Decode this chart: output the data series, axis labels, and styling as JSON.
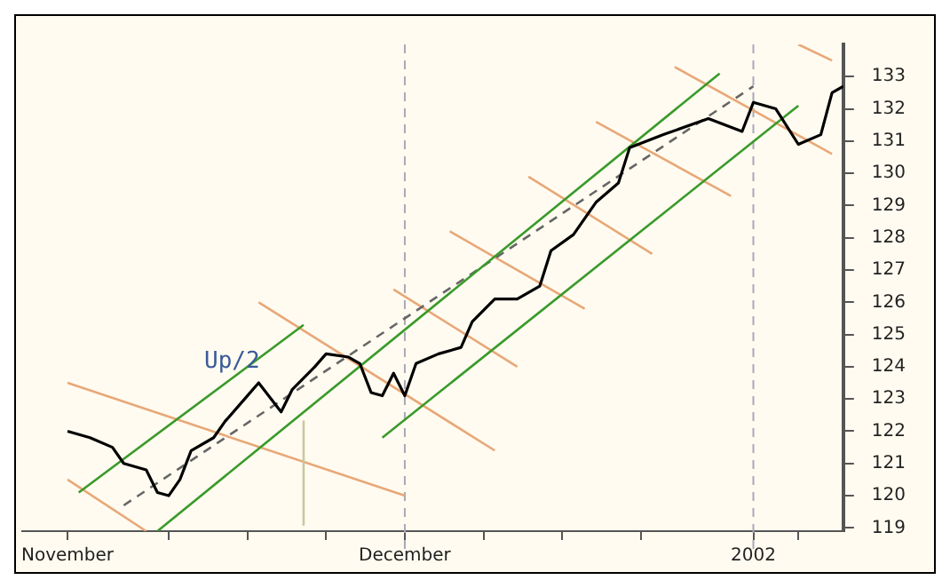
{
  "chart_data": {
    "type": "line",
    "xlim": [
      "2001-10-28",
      "2002-01-09"
    ],
    "ylim": [
      118.9,
      134.0
    ],
    "xticks": [
      {
        "value": "2001-11-01",
        "label": "November"
      },
      {
        "value": "2001-11-10",
        "label": null
      },
      {
        "value": "2001-11-17",
        "label": null
      },
      {
        "value": "2001-11-24",
        "label": null
      },
      {
        "value": "2001-12-01",
        "label": "December"
      },
      {
        "value": "2001-12-08",
        "label": null
      },
      {
        "value": "2001-12-15",
        "label": null
      },
      {
        "value": "2001-12-22",
        "label": null
      },
      {
        "value": "2002-01-01",
        "label": "2002"
      },
      {
        "value": "2002-01-05",
        "label": null
      }
    ],
    "yticks": [
      119,
      120,
      121,
      122,
      123,
      124,
      125,
      126,
      127,
      128,
      129,
      130,
      131,
      132,
      133
    ],
    "grid": false,
    "legend": false,
    "marker": "none",
    "ref_lines": [
      {
        "axis": "x",
        "value": "2001-12-01",
        "color": "#a8a8b8",
        "line_style": "dashed"
      },
      {
        "axis": "x",
        "value": "2002-01-01",
        "color": "#a8a8b8",
        "line_style": "dashed"
      }
    ],
    "annotations": [
      "Up/2"
    ],
    "series": [
      {
        "color": "#000000",
        "x": [
          "2001-11-01",
          "2001-11-03",
          "2001-11-05",
          "2001-11-06",
          "2001-11-08",
          "2001-11-09",
          "2001-11-10",
          "2001-11-11",
          "2001-11-12",
          "2001-11-14",
          "2001-11-15",
          "2001-11-17",
          "2001-11-18",
          "2001-11-20",
          "2001-11-21",
          "2001-11-23",
          "2001-11-24",
          "2001-11-26",
          "2001-11-27",
          "2001-11-28",
          "2001-11-29",
          "2001-11-30",
          "2001-12-01",
          "2001-12-02",
          "2001-12-04",
          "2001-12-06",
          "2001-12-07",
          "2001-12-09",
          "2001-12-11",
          "2001-12-13",
          "2001-12-14",
          "2001-12-16",
          "2001-12-18",
          "2001-12-20",
          "2001-12-21",
          "2001-12-24",
          "2001-12-28",
          "2001-12-31",
          "2002-01-01",
          "2002-01-03",
          "2002-01-05",
          "2002-01-07",
          "2002-01-08",
          "2002-01-09"
        ],
        "values": [
          122.0,
          121.8,
          121.5,
          121.0,
          120.8,
          120.1,
          120.0,
          120.5,
          121.4,
          121.8,
          122.3,
          123.1,
          123.5,
          122.6,
          123.3,
          124.0,
          124.4,
          124.3,
          124.1,
          123.2,
          123.1,
          123.8,
          123.1,
          124.1,
          124.4,
          124.6,
          125.4,
          126.1,
          126.1,
          126.5,
          127.6,
          128.1,
          129.1,
          129.7,
          130.8,
          131.2,
          131.7,
          131.3,
          132.2,
          132.0,
          130.9,
          131.2,
          132.5,
          132.7
        ]
      },
      {
        "color": "#3a9a2a",
        "x": [
          "2001-11-09",
          "2001-12-29"
        ],
        "values": [
          118.9,
          133.1
        ]
      },
      {
        "color": "#3a9a2a",
        "x": [
          "2001-11-02",
          "2001-11-22"
        ],
        "values": [
          120.1,
          125.3
        ]
      },
      {
        "color": "#3a9a2a",
        "x": [
          "2001-11-29",
          "2002-01-05"
        ],
        "values": [
          121.8,
          132.1
        ]
      },
      {
        "color": "#666666",
        "line_style": "dashed",
        "x": [
          "2001-11-06",
          "2002-01-01"
        ],
        "values": [
          119.7,
          132.7
        ]
      },
      {
        "color": "#c8c8a0",
        "x": [
          "2001-11-22",
          "2001-11-22"
        ],
        "values": [
          122.3,
          119.1
        ]
      },
      {
        "color": "#e8a878",
        "x": [
          "2001-11-01",
          "2001-12-01"
        ],
        "values": [
          123.5,
          120.0
        ]
      },
      {
        "color": "#e8a878",
        "x": [
          "2001-11-01",
          "2001-11-08"
        ],
        "values": [
          120.5,
          118.9
        ]
      },
      {
        "color": "#e8a878",
        "x": [
          "2001-11-18",
          "2001-12-09"
        ],
        "values": [
          126.0,
          121.4
        ]
      },
      {
        "color": "#e8a878",
        "x": [
          "2001-11-30",
          "2001-12-11"
        ],
        "values": [
          126.4,
          124.0
        ]
      },
      {
        "color": "#e8a878",
        "x": [
          "2001-12-05",
          "2001-12-17"
        ],
        "values": [
          128.2,
          125.8
        ]
      },
      {
        "color": "#e8a878",
        "x": [
          "2001-12-12",
          "2001-12-23"
        ],
        "values": [
          129.9,
          127.5
        ]
      },
      {
        "color": "#e8a878",
        "x": [
          "2001-12-18",
          "2001-12-30"
        ],
        "values": [
          131.6,
          129.3
        ]
      },
      {
        "color": "#e8a878",
        "x": [
          "2001-12-25",
          "2002-01-08"
        ],
        "values": [
          133.3,
          130.6
        ]
      },
      {
        "color": "#e8a878",
        "x": [
          "2002-01-05",
          "2002-01-08"
        ],
        "values": [
          134.0,
          133.5
        ]
      }
    ]
  }
}
